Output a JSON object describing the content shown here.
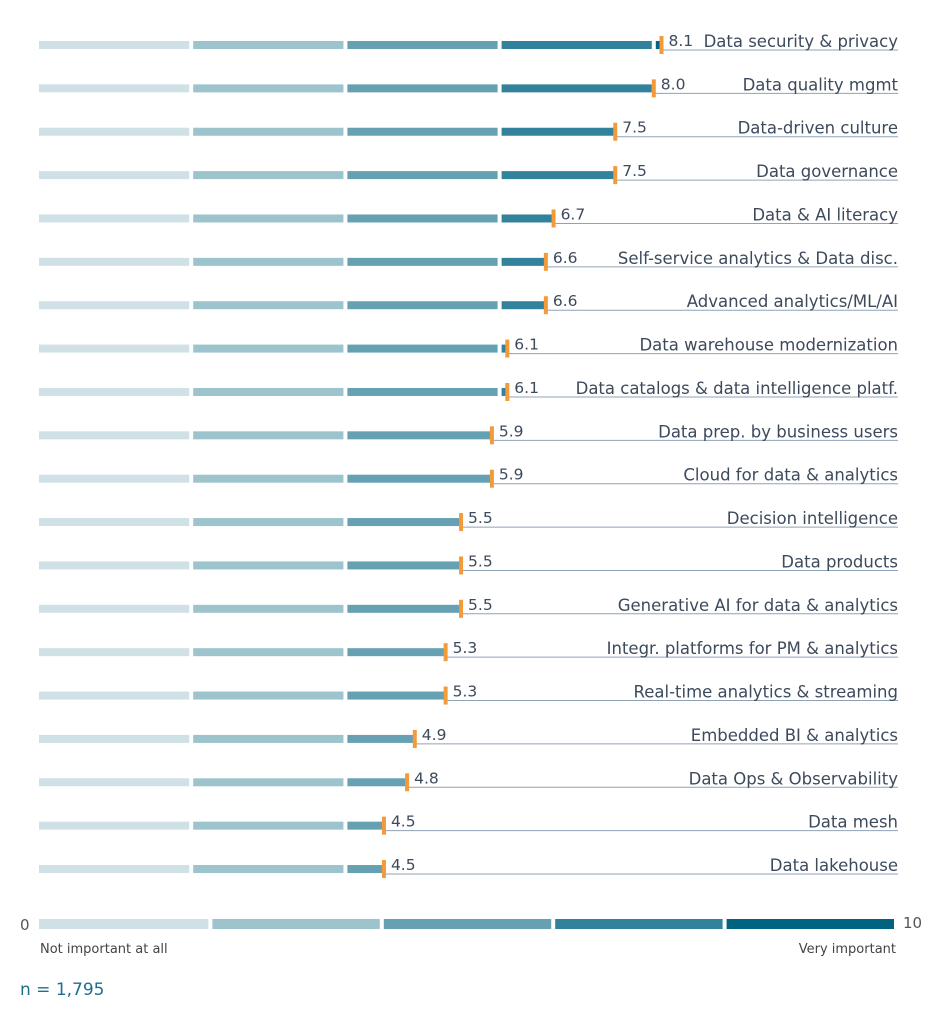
{
  "chart_data": {
    "type": "bar",
    "orientation": "horizontal",
    "categories": [
      "Data security & privacy",
      "Data quality mgmt",
      "Data-driven culture",
      "Data governance",
      "Data & AI literacy",
      "Self-service analytics & Data disc.",
      "Advanced analytics/ML/AI",
      "Data warehouse modernization",
      "Data catalogs & data intelligence platf.",
      "Data prep. by business users",
      "Cloud for data & analytics",
      "Decision intelligence",
      "Data products",
      "Generative AI for data & analytics",
      "Integr. platforms for PM & analytics",
      "Real-time analytics & streaming",
      "Embedded BI & analytics",
      "Data Ops & Observability",
      "Data mesh",
      "Data lakehouse"
    ],
    "values": [
      8.1,
      8.0,
      7.5,
      7.5,
      6.7,
      6.6,
      6.6,
      6.1,
      6.1,
      5.9,
      5.9,
      5.5,
      5.5,
      5.5,
      5.3,
      5.3,
      4.9,
      4.8,
      4.5,
      4.5
    ],
    "value_labels": [
      "8.1",
      "8.0",
      "7.5",
      "7.5",
      "6.7",
      "6.6",
      "6.6",
      "6.1",
      "6.1",
      "5.9",
      "5.9",
      "5.5",
      "5.5",
      "5.5",
      "5.3",
      "5.3",
      "4.9",
      "4.8",
      "4.5",
      "4.5"
    ],
    "xlim": [
      0,
      10
    ],
    "scale": {
      "min_label": "0",
      "max_label": "10",
      "left_caption": "Not important at all",
      "right_caption": "Very important"
    },
    "note": "n = 1,795",
    "grid": false
  },
  "colors": {
    "band1": "#cfe1e6",
    "band2": "#9dc3cc",
    "band3": "#66a1b3",
    "band4": "#33829b",
    "band5": "#006382",
    "marker": "#f39a3a",
    "underline": "#8fa3b8"
  }
}
